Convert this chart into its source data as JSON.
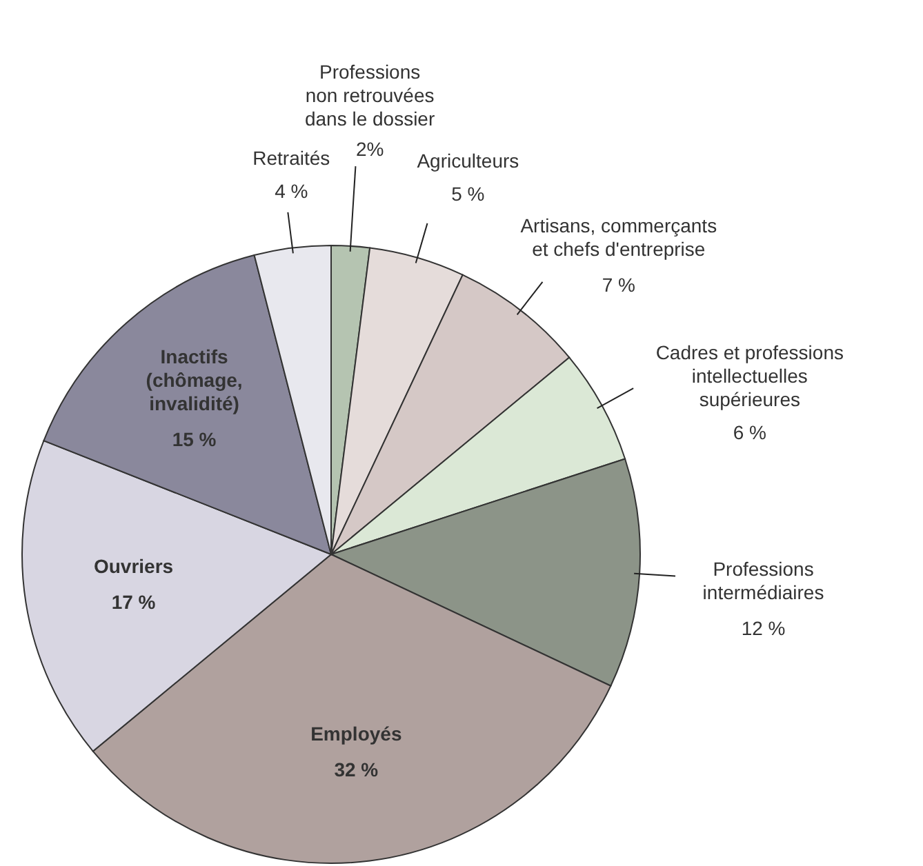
{
  "chart_data": {
    "type": "pie",
    "categories": [
      "Professions\nnon retrouvées\ndans le dossier",
      "Agriculteurs",
      "Artisans, commerçants\net chefs d'entreprise",
      "Cadres et professions\nintellectuelles\nsupérieures",
      "Professions\nintermédiaires",
      "Employés",
      "Ouvriers",
      "Inactifs\n(chômage,\ninvalidité)",
      "Retraités"
    ],
    "values": [
      2,
      5,
      7,
      6,
      12,
      32,
      17,
      15,
      4
    ],
    "value_labels": [
      "2%",
      "5 %",
      "7 %",
      "6 %",
      "12 %",
      "32 %",
      "17 %",
      "15 %",
      "4 %"
    ],
    "colors": [
      "#b5c4b1",
      "#e5dcda",
      "#d5c8c6",
      "#dbe8d6",
      "#8c9488",
      "#b0a19e",
      "#d8d6e2",
      "#8a889c",
      "#e8e8ee"
    ]
  }
}
